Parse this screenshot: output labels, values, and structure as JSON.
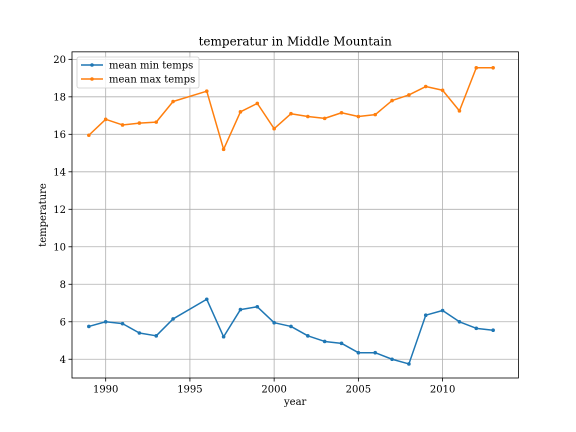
{
  "chart_data": {
    "type": "line",
    "title": "temperatur in Middle Mountain",
    "xlabel": "year",
    "ylabel": "temperature",
    "xlim": [
      1988,
      2014.5
    ],
    "ylim": [
      3,
      20.4
    ],
    "xticks": [
      1990,
      1995,
      2000,
      2005,
      2010
    ],
    "yticks": [
      4,
      6,
      8,
      10,
      12,
      14,
      16,
      18,
      20
    ],
    "grid": true,
    "legend_position": "upper left",
    "x": [
      1989,
      1990,
      1991,
      1992,
      1993,
      1994,
      1996,
      1997,
      1998,
      1999,
      2000,
      2001,
      2002,
      2003,
      2004,
      2005,
      2006,
      2007,
      2008,
      2009,
      2010,
      2011,
      2012,
      2013
    ],
    "series": [
      {
        "name": "mean min temps",
        "color": "#1f77b4",
        "values": [
          5.75,
          6.0,
          5.9,
          5.4,
          5.25,
          6.15,
          7.2,
          5.2,
          6.65,
          6.8,
          5.95,
          5.75,
          5.25,
          4.95,
          4.85,
          4.35,
          4.35,
          4.0,
          3.75,
          6.35,
          6.6,
          6.0,
          5.65,
          5.55
        ]
      },
      {
        "name": "mean max temps",
        "color": "#ff7f0e",
        "values": [
          15.95,
          16.8,
          16.5,
          16.6,
          16.65,
          17.75,
          18.3,
          15.2,
          17.2,
          17.65,
          16.3,
          17.1,
          16.95,
          16.85,
          17.15,
          16.95,
          17.05,
          17.8,
          18.1,
          18.55,
          18.35,
          17.25,
          19.55,
          19.55
        ]
      }
    ]
  }
}
